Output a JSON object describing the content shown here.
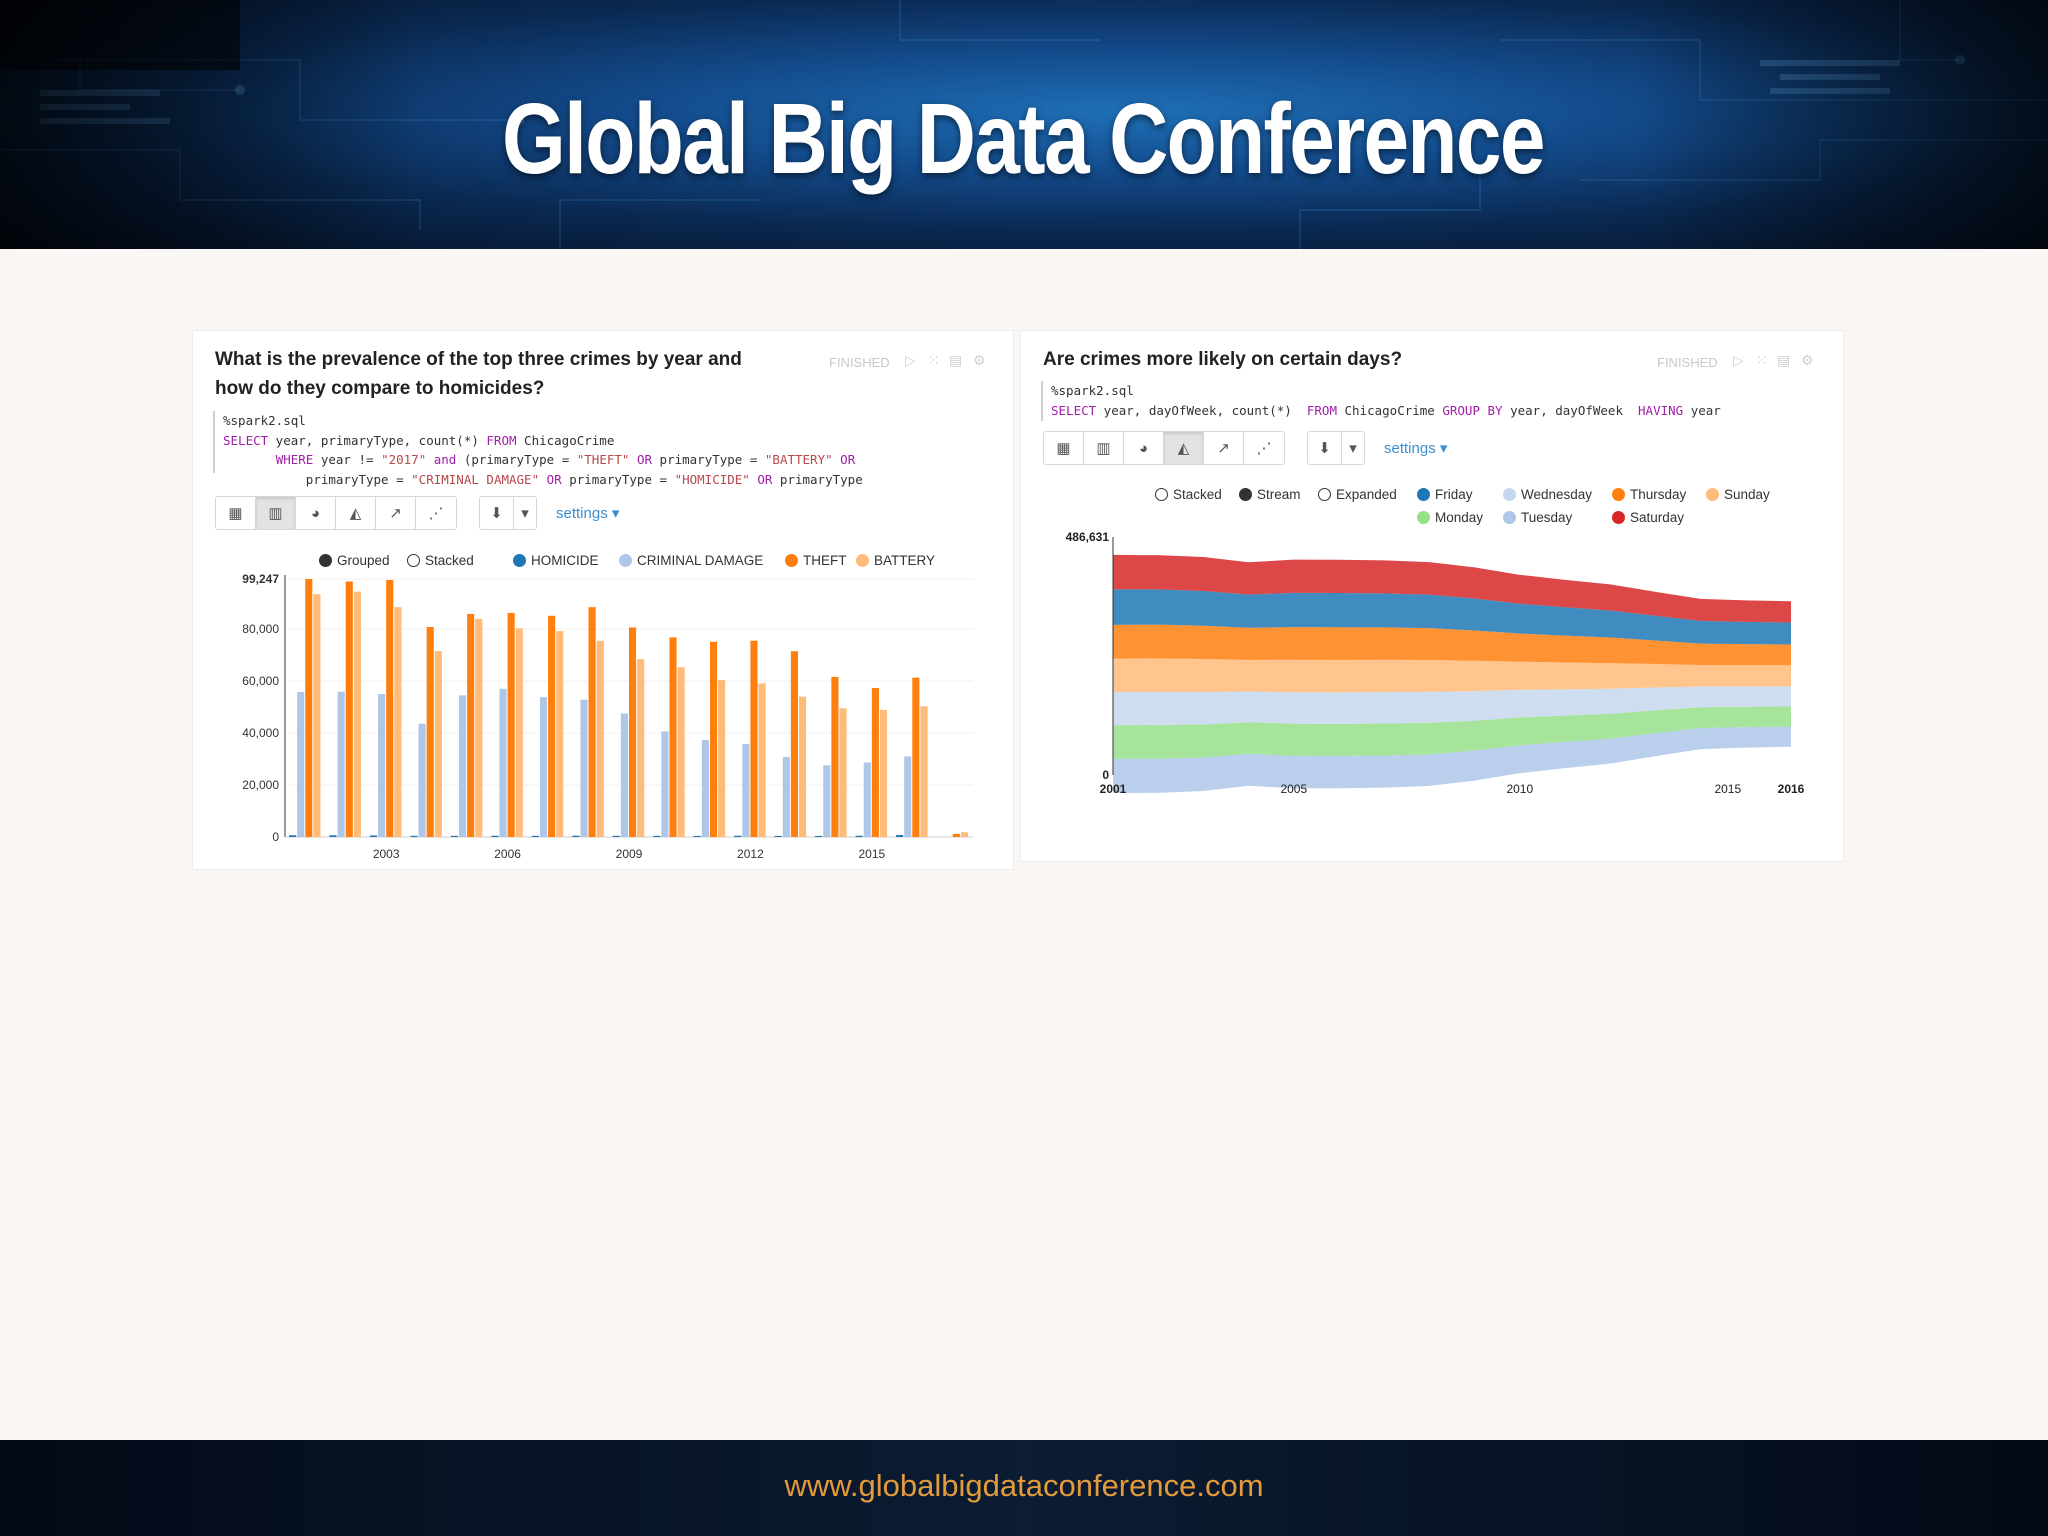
{
  "banner": {
    "title": "Global Big Data  Conference"
  },
  "footer": {
    "url": "www.globalbigdataconference.com"
  },
  "panel1": {
    "title_line1": "What is the prevalence of the top three crimes by year and",
    "title_line2": "how do they compare to homicides?",
    "status": "FINISHED",
    "code": {
      "l1": "%spark2.sql",
      "l2_a": "SELECT",
      "l2_b": " year, primaryType, count(*) ",
      "l2_c": "FROM",
      "l2_d": " ChicagoCrime",
      "l3_a": "WHERE",
      "l3_b": " year != ",
      "l3_c": "\"2017\"",
      "l3_d": " and ",
      "l3_e": "(primaryType = ",
      "l3_f": "\"THEFT\"",
      "l3_g": " OR",
      "l3_h": " primaryType = ",
      "l3_i": "\"BATTERY\"",
      "l3_j": " OR",
      "l4_a": "primaryType = ",
      "l4_b": "\"CRIMINAL DAMAGE\"",
      "l4_c": " OR",
      "l4_d": " primaryType = ",
      "l4_e": "\"HOMICIDE\"",
      "l4_f": " OR",
      "l4_g": " primaryType"
    },
    "settings_label": "settings ▾",
    "legend": {
      "grouped": "Grouped",
      "stacked": "Stacked"
    }
  },
  "panel2": {
    "title": "Are crimes more likely on certain days?",
    "status": "FINISHED",
    "code": {
      "l1": "%spark2.sql",
      "l2_a": "SELECT",
      "l2_b": " year, dayOfWeek, count(*)  ",
      "l2_c": "FROM",
      "l2_d": " ChicagoCrime ",
      "l2_e": "GROUP BY",
      "l2_f": " year, dayOfWeek  ",
      "l2_g": "HAVING",
      "l2_h": " year"
    },
    "settings_label": "settings ▾",
    "legend": {
      "stacked": "Stacked",
      "stream": "Stream",
      "expanded": "Expanded"
    }
  },
  "icons": {
    "table": "table-icon",
    "bar": "bar-chart-icon",
    "pie": "pie-chart-icon",
    "area": "area-chart-icon",
    "line": "line-chart-icon",
    "scatter": "scatter-chart-icon",
    "download": "download-icon",
    "run": "play-icon",
    "hide": "hide-code-icon",
    "output": "output-icon",
    "gear": "gear-icon"
  },
  "chart_data": [
    {
      "type": "bar",
      "grouping": "grouped",
      "categories": [
        "2001",
        "2002",
        "2003",
        "2004",
        "2005",
        "2006",
        "2007",
        "2008",
        "2009",
        "2010",
        "2011",
        "2012",
        "2013",
        "2014",
        "2015",
        "2016",
        "2017"
      ],
      "x_tick_labels": [
        "2003",
        "2006",
        "2009",
        "2012",
        "2015"
      ],
      "y_tick_labels": [
        "0",
        "20,000",
        "40,000",
        "60,000",
        "80,000",
        "99,247"
      ],
      "ylim": [
        0,
        99247
      ],
      "series": [
        {
          "name": "HOMICIDE",
          "color": "#1f77b4",
          "values": [
            660,
            650,
            600,
            450,
            450,
            470,
            450,
            510,
            460,
            440,
            430,
            500,
            420,
            420,
            490,
            760,
            0
          ]
        },
        {
          "name": "CRIMINAL DAMAGE",
          "color": "#aec7e8",
          "values": [
            55800,
            55900,
            55000,
            43600,
            54500,
            57000,
            53800,
            52800,
            47500,
            40600,
            37300,
            35800,
            30800,
            27600,
            28700,
            31000,
            0
          ]
        },
        {
          "name": "THEFT",
          "color": "#ff7f0e",
          "values": [
            99247,
            98300,
            98900,
            80800,
            85800,
            86200,
            85100,
            88400,
            80600,
            76800,
            75100,
            75500,
            71500,
            61600,
            57300,
            61300,
            1200
          ]
        },
        {
          "name": "BATTERY",
          "color": "#ffbb78",
          "values": [
            93400,
            94400,
            88400,
            71500,
            83900,
            80300,
            79200,
            75500,
            68400,
            65300,
            60400,
            59100,
            54000,
            49500,
            48900,
            50300,
            1800
          ]
        }
      ]
    },
    {
      "type": "area",
      "style": "stream",
      "x": [
        2001,
        2002,
        2003,
        2004,
        2005,
        2006,
        2007,
        2008,
        2009,
        2010,
        2011,
        2012,
        2013,
        2014,
        2015,
        2016
      ],
      "x_tick_labels": [
        "2001",
        "2005",
        "2010",
        "2015",
        "2016"
      ],
      "y_tick_labels": [
        "0",
        "486,631"
      ],
      "ylim": [
        0,
        486631
      ],
      "series": [
        {
          "name": "Tuesday",
          "color": "#aec7e8",
          "values": [
            70000,
            70000,
            68500,
            65500,
            66500,
            66000,
            65500,
            64500,
            61500,
            57000,
            54000,
            51000,
            47000,
            43000,
            42000,
            41500
          ]
        },
        {
          "name": "Monday",
          "color": "#98df8a",
          "values": [
            69000,
            69000,
            67500,
            64500,
            65500,
            65500,
            65500,
            64500,
            61000,
            57000,
            53500,
            51000,
            47000,
            42500,
            41500,
            41000
          ]
        },
        {
          "name": "Wednesday",
          "color": "#c5d7ec",
          "values": [
            68000,
            67500,
            66500,
            63000,
            64500,
            64500,
            64500,
            63500,
            60500,
            56500,
            53500,
            51000,
            46500,
            42500,
            41500,
            41000
          ]
        },
        {
          "name": "Sunday",
          "color": "#ffbb78",
          "values": [
            68000,
            68500,
            67500,
            64500,
            66500,
            66500,
            66000,
            65000,
            62000,
            57500,
            55000,
            52500,
            48000,
            44000,
            43500,
            43000
          ]
        },
        {
          "name": "Thursday",
          "color": "#ff7f0e",
          "values": [
            69000,
            69000,
            68000,
            65500,
            66500,
            66500,
            66000,
            65000,
            62000,
            57500,
            55000,
            52500,
            48000,
            43500,
            43000,
            42500
          ]
        },
        {
          "name": "Friday",
          "color": "#1f77b4",
          "values": [
            72500,
            72000,
            71000,
            68000,
            70000,
            70000,
            69500,
            68500,
            65500,
            61000,
            58000,
            55000,
            50500,
            46500,
            45500,
            45000
          ]
        },
        {
          "name": "Saturday",
          "color": "#d62728",
          "values": [
            70500,
            70000,
            69500,
            66000,
            68000,
            68000,
            67500,
            66500,
            63500,
            59000,
            56000,
            53500,
            49000,
            45000,
            44000,
            43500
          ]
        }
      ]
    }
  ]
}
